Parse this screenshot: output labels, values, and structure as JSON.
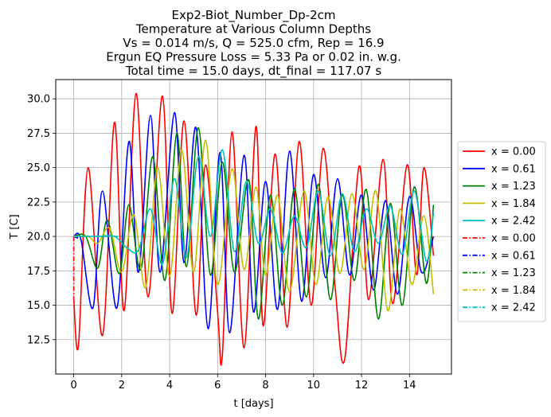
{
  "chart_data": {
    "type": "line",
    "title_lines": [
      "Exp2-Biot_Number_Dp-2cm",
      "Temperature at Various Column Depths",
      "Vs = 0.014 m/s, Q = 525.0 cfm, Rep = 16.9",
      "Ergun EQ Pressure Loss = 5.33 Pa or 0.02 in. w.g.",
      "Total time = 15.0 days, dt_final = 117.07 s"
    ],
    "xlabel": "t [days]",
    "ylabel": "T [C]",
    "xlim": [
      -0.75,
      15.75
    ],
    "ylim": [
      10.0,
      31.4
    ],
    "xticks": [
      0,
      2,
      4,
      6,
      8,
      10,
      12,
      14
    ],
    "xtick_labels": [
      "0",
      "2",
      "4",
      "6",
      "8",
      "10",
      "12",
      "14"
    ],
    "yticks": [
      12.5,
      15.0,
      17.5,
      20.0,
      22.5,
      25.0,
      27.5,
      30.0
    ],
    "ytick_labels": [
      "12.5",
      "15.0",
      "17.5",
      "20.0",
      "22.5",
      "25.0",
      "27.5",
      "30.0"
    ],
    "grid": true,
    "legend_position": "outside-right",
    "series": [
      {
        "name": "x = 0.00",
        "color": "#ff0000",
        "dash": "solid",
        "x": [
          0,
          0.2,
          0.6,
          1.2,
          1.7,
          2.1,
          2.6,
          3.1,
          3.7,
          4.1,
          4.6,
          5.1,
          5.5,
          6.0,
          6.2,
          6.6,
          7.1,
          7.6,
          7.9,
          8.4,
          8.9,
          9.4,
          9.9,
          10.4,
          10.9,
          11.3,
          11.9,
          12.3,
          12.9,
          13.3,
          13.9,
          14.3,
          14.6,
          15.0
        ],
        "y": [
          15.5,
          12.1,
          25.0,
          12.8,
          28.3,
          14.6,
          30.4,
          15.6,
          30.2,
          14.4,
          28.4,
          14.3,
          25.2,
          14.5,
          11.4,
          27.6,
          11.9,
          28.0,
          13.5,
          26.0,
          13.4,
          26.9,
          15.0,
          26.4,
          16.3,
          11.1,
          25.1,
          15.4,
          25.6,
          15.1,
          25.2,
          17.2,
          25.0,
          18.6
        ]
      },
      {
        "name": "x = 0.61",
        "color": "#0000ff",
        "dash": "solid",
        "x": [
          0,
          0.3,
          0.8,
          1.2,
          1.8,
          2.3,
          2.7,
          3.2,
          3.6,
          4.2,
          4.6,
          5.1,
          5.6,
          6.1,
          6.5,
          7.1,
          7.5,
          8.0,
          8.5,
          9.0,
          9.5,
          10.0,
          10.5,
          11.0,
          11.5,
          12.0,
          12.5,
          13.0,
          13.5,
          14.0,
          14.5,
          15.0
        ],
        "y": [
          20.0,
          19.8,
          14.8,
          23.3,
          14.8,
          26.9,
          17.4,
          28.8,
          17.4,
          29.0,
          18.1,
          27.9,
          13.3,
          26.1,
          13.0,
          25.9,
          14.5,
          24.0,
          14.7,
          26.2,
          15.3,
          24.5,
          17.0,
          24.2,
          17.2,
          23.0,
          16.1,
          22.6,
          15.8,
          22.9,
          17.4,
          20.0
        ]
      },
      {
        "name": "x = 1.23",
        "color": "#008000",
        "dash": "solid",
        "x": [
          0,
          0.5,
          1.0,
          1.4,
          1.9,
          2.3,
          2.8,
          3.3,
          3.8,
          4.3,
          4.7,
          5.2,
          5.7,
          6.2,
          6.7,
          7.3,
          7.7,
          8.2,
          8.7,
          9.2,
          9.7,
          10.2,
          10.7,
          11.2,
          11.7,
          12.2,
          12.7,
          13.2,
          13.7,
          14.2,
          14.7,
          15.0
        ],
        "y": [
          20.0,
          20.0,
          17.7,
          21.2,
          17.3,
          22.3,
          17.6,
          25.8,
          16.8,
          27.5,
          17.8,
          27.9,
          17.2,
          25.4,
          17.4,
          24.1,
          14.0,
          23.0,
          15.0,
          23.5,
          15.6,
          23.8,
          15.4,
          23.0,
          16.8,
          23.4,
          14.0,
          22.4,
          15.0,
          23.6,
          16.6,
          22.3
        ]
      },
      {
        "name": "x = 1.84",
        "color": "#c0c000",
        "dash": "solid",
        "x": [
          0,
          0.6,
          1.0,
          1.5,
          2.0,
          2.5,
          3.0,
          3.5,
          4.0,
          4.5,
          5.0,
          5.5,
          6.0,
          6.6,
          7.1,
          7.6,
          8.0,
          8.5,
          9.0,
          9.6,
          10.1,
          10.6,
          11.1,
          11.6,
          12.1,
          12.6,
          13.1,
          13.6,
          14.1,
          14.6,
          15.0
        ],
        "y": [
          20.0,
          20.0,
          19.5,
          20.6,
          17.4,
          21.6,
          16.3,
          25.0,
          17.1,
          26.3,
          17.4,
          27.0,
          16.5,
          24.9,
          17.6,
          23.6,
          17.2,
          23.0,
          16.0,
          23.3,
          16.5,
          22.9,
          17.3,
          23.1,
          17.6,
          23.3,
          14.6,
          22.0,
          16.5,
          21.5,
          15.8
        ]
      },
      {
        "name": "x = 2.42",
        "color": "#00bfbf",
        "dash": "solid",
        "x": [
          0,
          1.0,
          1.7,
          2.2,
          2.7,
          3.2,
          3.7,
          4.2,
          4.7,
          5.2,
          5.7,
          6.2,
          6.7,
          7.2,
          7.7,
          8.2,
          8.7,
          9.2,
          9.7,
          10.2,
          10.7,
          11.2,
          11.7,
          12.2,
          12.7,
          13.2,
          13.7,
          14.2,
          14.7,
          15.0
        ],
        "y": [
          20.0,
          20.0,
          20.0,
          19.2,
          19.0,
          22.0,
          18.0,
          24.2,
          18.5,
          25.8,
          20.0,
          26.3,
          18.9,
          24.0,
          19.5,
          22.0,
          18.8,
          21.5,
          19.2,
          23.3,
          18.6,
          23.1,
          18.9,
          22.0,
          19.5,
          22.2,
          18.7,
          23.3,
          18.2,
          21.7
        ]
      },
      {
        "name": "x = 0.00",
        "color": "#ff0000",
        "dash": "dashdot",
        "x": [
          0.0,
          0.0
        ],
        "y": [
          20.0,
          15.5
        ]
      },
      {
        "name": "x = 0.61",
        "color": "#0000ff",
        "dash": "dashdot",
        "x": [
          0.0,
          0.3
        ],
        "y": [
          20.0,
          19.8
        ]
      },
      {
        "name": "x = 1.23",
        "color": "#008000",
        "dash": "dashdot",
        "x": [
          0.0,
          0.5
        ],
        "y": [
          20.0,
          20.0
        ]
      },
      {
        "name": "x = 1.84",
        "color": "#c0c000",
        "dash": "dashdot",
        "x": [
          0.0,
          0.6
        ],
        "y": [
          20.0,
          20.0
        ]
      },
      {
        "name": "x = 2.42",
        "color": "#00bfbf",
        "dash": "dashdot",
        "x": [
          0.0,
          2.0
        ],
        "y": [
          20.0,
          20.0
        ]
      }
    ]
  }
}
